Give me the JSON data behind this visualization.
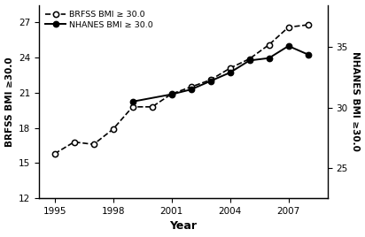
{
  "brfss_years": [
    1995,
    1996,
    1997,
    1998,
    1999,
    2000,
    2001,
    2002,
    2003,
    2004,
    2005,
    2006,
    2007,
    2008
  ],
  "brfss_values": [
    15.8,
    16.8,
    16.6,
    17.9,
    19.8,
    19.8,
    20.9,
    21.5,
    22.1,
    23.1,
    23.9,
    25.1,
    26.6,
    26.8
  ],
  "nhanes_years": [
    1999,
    2001,
    2002,
    2003,
    2004,
    2005,
    2006,
    2007,
    2008
  ],
  "nhanes_values": [
    30.5,
    31.1,
    31.5,
    32.2,
    32.9,
    33.9,
    34.1,
    35.1,
    34.4
  ],
  "brfss_label": "BRFSS BMI ≥ 30.0",
  "nhanes_label": "NHANES BMI ≥ 30.0",
  "xlabel": "Year",
  "ylabel_left": "BRFSS BMI ≥30.0",
  "ylabel_right": "NHANES BMI ≥30.0",
  "xlim": [
    1994.2,
    2009.0
  ],
  "ylim_left": [
    12,
    28.5
  ],
  "ylim_right": [
    22.5,
    38.5
  ],
  "xticks": [
    1995,
    1998,
    2001,
    2004,
    2007
  ],
  "yticks_left": [
    12,
    15,
    18,
    21,
    24,
    27
  ],
  "yticks_right": [
    25,
    30,
    35
  ],
  "background_color": "#ffffff",
  "line_color": "#000000"
}
